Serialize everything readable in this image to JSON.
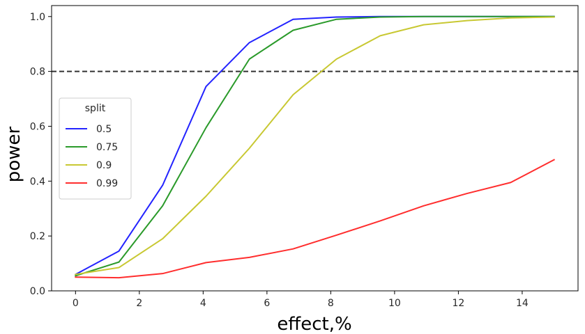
{
  "chart_data": {
    "type": "line",
    "xlabel": "effect,%",
    "ylabel": "power",
    "xlim": [
      -0.75,
      15.75
    ],
    "ylim": [
      0.0,
      1.04
    ],
    "x_ticks": [
      0,
      2,
      4,
      6,
      8,
      10,
      12,
      14
    ],
    "y_ticks": [
      0.0,
      0.2,
      0.4,
      0.6,
      0.8,
      1.0
    ],
    "x_tick_labels": [
      "0",
      "2",
      "4",
      "6",
      "8",
      "10",
      "12",
      "14"
    ],
    "y_tick_labels": [
      "0.0",
      "0.2",
      "0.4",
      "0.6",
      "0.8",
      "1.0"
    ],
    "grid": false,
    "reference_line": {
      "y": 0.8,
      "style": "dashed",
      "color": "#333333"
    },
    "legend": {
      "title": "split",
      "placement": "center-left"
    },
    "x": [
      0,
      1.36,
      2.73,
      4.09,
      5.45,
      6.82,
      8.18,
      9.55,
      10.91,
      12.27,
      13.64,
      15.0
    ],
    "series": [
      {
        "name": "0.5",
        "color": "#2323ff",
        "values": [
          0.06,
          0.145,
          0.385,
          0.745,
          0.905,
          0.99,
          0.998,
          1.0,
          1.0,
          1.0,
          1.0,
          1.0
        ]
      },
      {
        "name": "0.75",
        "color": "#2a9a2a",
        "values": [
          0.055,
          0.105,
          0.31,
          0.595,
          0.845,
          0.95,
          0.99,
          0.998,
          1.0,
          1.0,
          1.0,
          1.0
        ]
      },
      {
        "name": "0.9",
        "color": "#c8c832",
        "values": [
          0.06,
          0.085,
          0.19,
          0.345,
          0.52,
          0.715,
          0.845,
          0.93,
          0.97,
          0.985,
          0.995,
          0.998
        ]
      },
      {
        "name": "0.99",
        "color": "#ff2d2d",
        "values": [
          0.05,
          0.048,
          0.063,
          0.103,
          0.122,
          0.153,
          0.203,
          0.255,
          0.31,
          0.355,
          0.395,
          0.478
        ]
      }
    ]
  }
}
